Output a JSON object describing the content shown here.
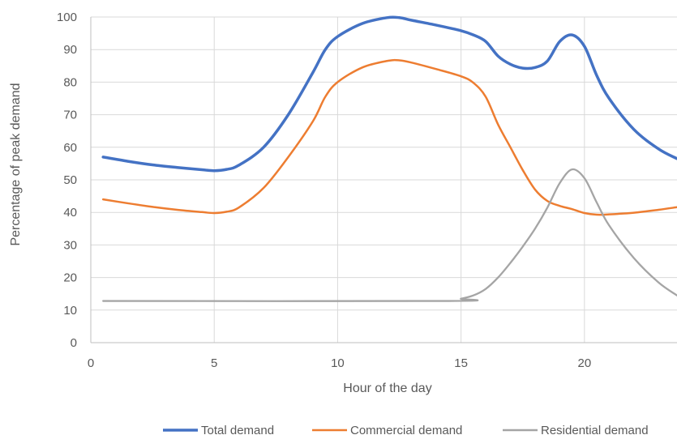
{
  "chart_data": {
    "type": "line",
    "title": "",
    "xlabel": "Hour of the day",
    "ylabel": "Percentage of peak demand",
    "xlim": [
      0,
      23.75
    ],
    "ylim": [
      0,
      100
    ],
    "xticks": [
      0,
      5,
      10,
      15,
      20
    ],
    "yticks": [
      0,
      10,
      20,
      30,
      40,
      50,
      60,
      70,
      80,
      90,
      100
    ],
    "grid": true,
    "legend_position": "bottom",
    "series": [
      {
        "name": "Total demand",
        "color": "#4472C4",
        "points": [
          [
            0.5,
            57
          ],
          [
            1.5,
            55.7
          ],
          [
            2.5,
            54.6
          ],
          [
            3.5,
            53.8
          ],
          [
            4.5,
            53.1
          ],
          [
            5,
            52.8
          ],
          [
            5.5,
            53.2
          ],
          [
            6,
            54.5
          ],
          [
            7,
            60
          ],
          [
            8,
            70
          ],
          [
            9,
            83
          ],
          [
            9.5,
            90
          ],
          [
            10,
            94
          ],
          [
            11,
            98
          ],
          [
            12,
            99.8
          ],
          [
            12.5,
            99.8
          ],
          [
            13,
            99
          ],
          [
            14,
            97.5
          ],
          [
            15,
            95.8
          ],
          [
            15.5,
            94.5
          ],
          [
            16,
            92.5
          ],
          [
            16.5,
            88
          ],
          [
            17,
            85.5
          ],
          [
            17.5,
            84.3
          ],
          [
            18,
            84.5
          ],
          [
            18.5,
            86.5
          ],
          [
            19,
            92.5
          ],
          [
            19.5,
            94.5
          ],
          [
            20,
            91
          ],
          [
            20.5,
            82
          ],
          [
            21,
            75
          ],
          [
            22,
            65.5
          ],
          [
            23,
            59.5
          ],
          [
            23.75,
            56.5
          ]
        ]
      },
      {
        "name": "Commercial demand",
        "color": "#ED7D31",
        "points": [
          [
            0.5,
            44
          ],
          [
            1.5,
            42.8
          ],
          [
            2.5,
            41.7
          ],
          [
            3.5,
            40.8
          ],
          [
            4.5,
            40.1
          ],
          [
            5,
            39.8
          ],
          [
            5.5,
            40.2
          ],
          [
            6,
            41.5
          ],
          [
            7,
            47.5
          ],
          [
            8,
            57
          ],
          [
            9,
            68
          ],
          [
            9.5,
            75.5
          ],
          [
            10,
            80
          ],
          [
            11,
            84.5
          ],
          [
            12,
            86.5
          ],
          [
            12.5,
            86.7
          ],
          [
            13,
            86
          ],
          [
            14,
            84
          ],
          [
            15,
            81.8
          ],
          [
            15.5,
            79.8
          ],
          [
            16,
            75.5
          ],
          [
            16.5,
            67
          ],
          [
            17,
            60
          ],
          [
            17.5,
            53
          ],
          [
            18,
            47
          ],
          [
            18.5,
            43.5
          ],
          [
            19,
            42
          ],
          [
            19.5,
            41
          ],
          [
            20,
            39.8
          ],
          [
            20.5,
            39.3
          ],
          [
            21,
            39.4
          ],
          [
            22,
            39.9
          ],
          [
            23,
            40.8
          ],
          [
            23.75,
            41.6
          ]
        ]
      },
      {
        "name": "Residential demand",
        "color": "#A5A5A5",
        "points": [
          [
            0.5,
            12.8
          ],
          [
            14.5,
            12.8
          ],
          [
            15,
            13.5
          ],
          [
            15.5,
            14.5
          ],
          [
            16,
            16.5
          ],
          [
            16.5,
            20
          ],
          [
            17,
            24.5
          ],
          [
            17.5,
            29.5
          ],
          [
            18,
            35
          ],
          [
            18.5,
            41.5
          ],
          [
            19,
            49
          ],
          [
            19.5,
            53.2
          ],
          [
            20,
            50.5
          ],
          [
            20.5,
            43
          ],
          [
            21,
            36
          ],
          [
            22,
            26
          ],
          [
            23,
            18.5
          ],
          [
            23.75,
            14.5
          ]
        ]
      }
    ]
  }
}
